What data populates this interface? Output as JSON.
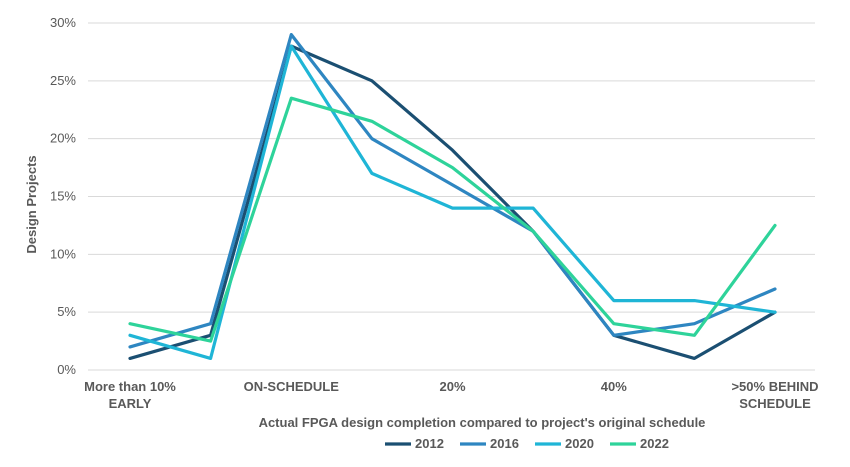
{
  "chart_data": {
    "type": "line",
    "title": "",
    "xlabel": "Actual FPGA design completion compared to project's original schedule",
    "ylabel": "Design Projects",
    "x_tick_labels": [
      {
        "index": 0,
        "lines": [
          "More than 10%",
          "EARLY"
        ]
      },
      {
        "index": 2,
        "lines": [
          "ON-SCHEDULE"
        ]
      },
      {
        "index": 4,
        "lines": [
          "20%"
        ]
      },
      {
        "index": 6,
        "lines": [
          "40%"
        ]
      },
      {
        "index": 8,
        "lines": [
          ">50% BEHIND",
          "SCHEDULE"
        ]
      }
    ],
    "num_points": 9,
    "y_ticks": [
      "0%",
      "5%",
      "10%",
      "15%",
      "20%",
      "25%",
      "30%"
    ],
    "y_tick_values": [
      0,
      5,
      10,
      15,
      20,
      25,
      30
    ],
    "ylim": [
      0,
      30
    ],
    "grid": true,
    "legend_position": "bottom",
    "series": [
      {
        "name": "2012",
        "color": "#1b4f72",
        "values": [
          1,
          3,
          28,
          25,
          19,
          12,
          3,
          1,
          5
        ]
      },
      {
        "name": "2016",
        "color": "#2e86c1",
        "values": [
          2,
          4,
          29,
          20,
          16,
          12,
          3,
          4,
          7
        ]
      },
      {
        "name": "2020",
        "color": "#1fb5d6",
        "values": [
          3,
          1,
          28,
          17,
          14,
          14,
          6,
          6,
          5
        ]
      },
      {
        "name": "2022",
        "color": "#2ed39a",
        "values": [
          4,
          2.5,
          23.5,
          21.5,
          17.5,
          12,
          4,
          3,
          12.5
        ]
      }
    ]
  }
}
